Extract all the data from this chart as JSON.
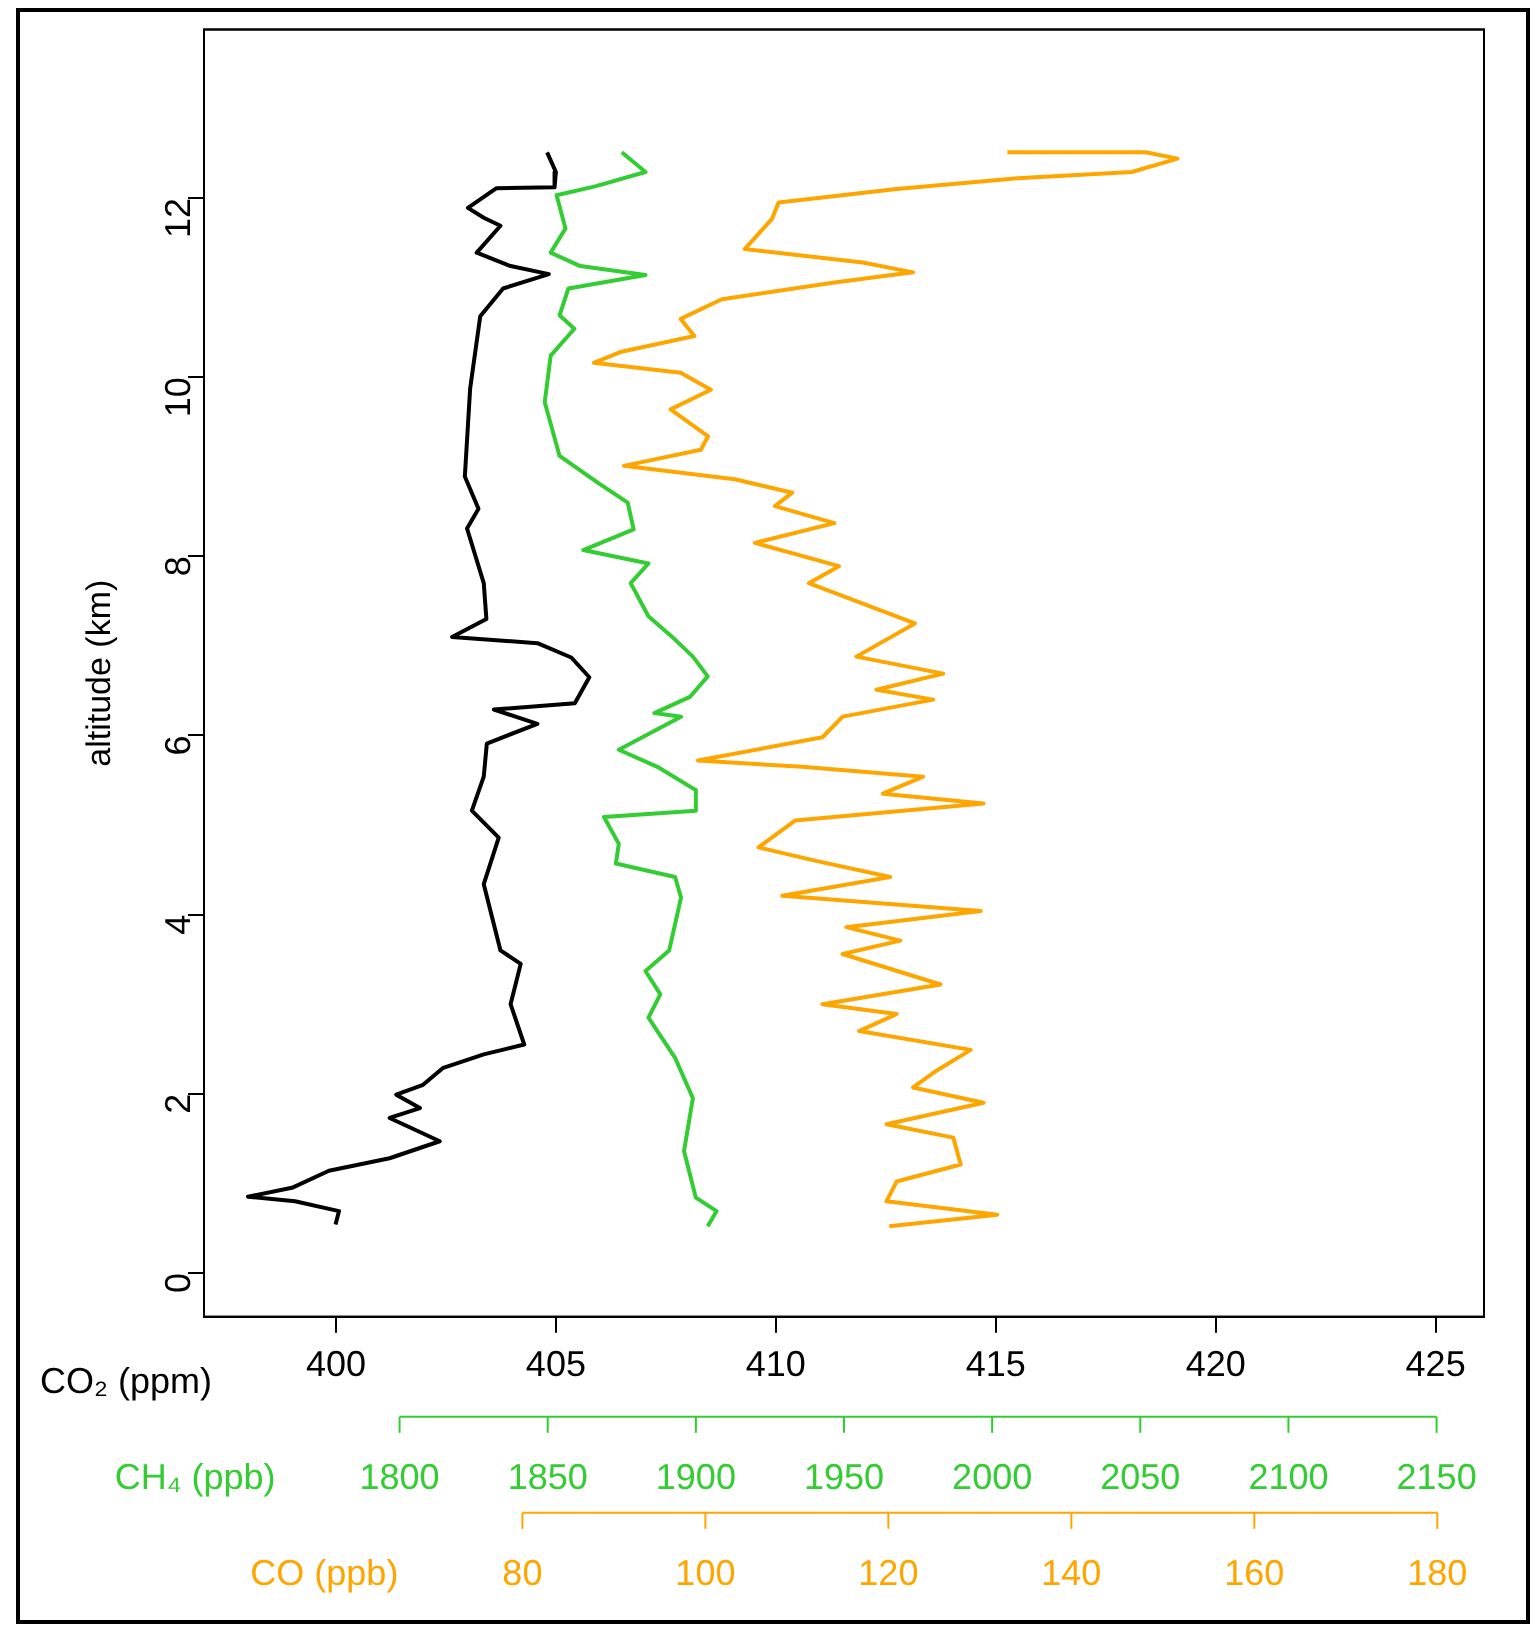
{
  "chart_data": [
    {
      "type": "line",
      "xlabel": "CO₂ (ppm)",
      "ylabel": "altitude (km)",
      "x2label": "CH₄ (ppb)",
      "xlim": [
        397,
        426.1
      ],
      "xticks": [
        400,
        405,
        410,
        415,
        420,
        425
      ],
      "x2lim": [
        1734,
        2166
      ],
      "x2ticks": [
        1800,
        1850,
        1900,
        1950,
        2000,
        2050,
        2100,
        2150
      ],
      "ylim": [
        -0.49,
        13.88
      ],
      "yticks": [
        0,
        2,
        4,
        6,
        8,
        10,
        12
      ],
      "series": [
        {
          "color": "#000000",
          "x": [
            404.8,
            405.0,
            404.97,
            403.65,
            403.0,
            403.36,
            403.74,
            403.2,
            403.97,
            404.84,
            403.8,
            403.28,
            403.05,
            402.93,
            403.24,
            402.98,
            403.36,
            403.42,
            402.64,
            404.58,
            405.35,
            405.76,
            405.43,
            403.59,
            404.58,
            403.43,
            403.36,
            403.09,
            403.7,
            403.36,
            403.74,
            404.2,
            403.97,
            404.28,
            403.36,
            402.44,
            401.98,
            401.37,
            401.91,
            401.22,
            402.36,
            401.22,
            399.84,
            399.0,
            398.0,
            399.07,
            400.07,
            399.99
          ],
          "values": [
            12.51,
            12.29,
            12.12,
            12.11,
            11.89,
            11.78,
            11.69,
            11.39,
            11.24,
            11.15,
            10.99,
            10.68,
            9.87,
            8.89,
            8.53,
            8.31,
            7.7,
            7.3,
            7.1,
            7.03,
            6.87,
            6.65,
            6.36,
            6.29,
            6.13,
            5.91,
            5.54,
            5.16,
            4.86,
            4.34,
            3.6,
            3.45,
            3.0,
            2.55,
            2.44,
            2.29,
            2.1,
            1.99,
            1.84,
            1.73,
            1.47,
            1.28,
            1.14,
            0.95,
            0.85,
            0.8,
            0.69,
            0.54
          ]
        },
        {
          "color": "#33cc33",
          "axis": "x2",
          "x": [
            1875,
            1883,
            1866,
            1853,
            1856,
            1851,
            1861,
            1883,
            1857,
            1854,
            1859,
            1851,
            1849,
            1854,
            1867,
            1877,
            1879,
            1862,
            1884,
            1878,
            1884,
            1893,
            1899,
            1904,
            1898,
            1886,
            1895,
            1874,
            1887,
            1900,
            1900,
            1869,
            1874,
            1873,
            1893,
            1895,
            1891,
            1883,
            1888,
            1884,
            1893,
            1899,
            1896,
            1900,
            1907,
            1904
          ],
          "values": [
            12.51,
            12.29,
            12.13,
            12.03,
            11.66,
            11.39,
            11.24,
            11.14,
            10.99,
            10.69,
            10.54,
            10.24,
            9.72,
            9.12,
            8.82,
            8.6,
            8.3,
            8.07,
            7.92,
            7.7,
            7.33,
            7.07,
            6.88,
            6.66,
            6.43,
            6.25,
            6.21,
            5.84,
            5.65,
            5.39,
            5.16,
            5.09,
            4.79,
            4.57,
            4.42,
            4.19,
            3.6,
            3.37,
            3.11,
            2.85,
            2.4,
            1.95,
            1.36,
            0.84,
            0.69,
            0.52
          ]
        }
      ]
    },
    {
      "type": "line",
      "xlabel": "CO (ppb)",
      "tick_labels": "x",
      "xlim": [
        45.2,
        185.1
      ],
      "xticks": [
        80,
        100,
        120,
        140,
        160,
        180
      ],
      "ylim": [
        -0.49,
        13.88
      ],
      "series": [
        {
          "color": "#ffa500",
          "x": [
            133.0,
            148.1,
            151.6,
            146.6,
            134.1,
            120.9,
            108.0,
            107.3,
            104.3,
            117.2,
            122.7,
            114.3,
            101.8,
            97.3,
            98.8,
            90.7,
            87.8,
            97.3,
            100.6,
            96.2,
            100.3,
            99.5,
            91.1,
            103.2,
            109.5,
            107.6,
            114.1,
            105.4,
            114.6,
            111.3,
            122.9,
            116.5,
            126.0,
            118.7,
            124.9,
            115.0,
            112.8,
            99.2,
            110.6,
            123.8,
            119.4,
            130.4,
            109.8,
            105.8,
            112.1,
            120.2,
            108.4,
            130.1,
            115.4,
            121.3,
            115.0,
            125.7,
            112.8,
            120.9,
            116.8,
            129.0,
            125.3,
            122.7,
            130.4,
            119.8,
            127.1,
            127.9,
            120.9,
            119.8,
            131.9,
            120.1
          ],
          "values": [
            12.51,
            12.51,
            12.44,
            12.29,
            12.22,
            12.1,
            11.95,
            11.77,
            11.43,
            11.28,
            11.17,
            11.06,
            10.87,
            10.65,
            10.46,
            10.28,
            10.16,
            10.05,
            9.86,
            9.64,
            9.34,
            9.19,
            9.01,
            8.86,
            8.71,
            8.56,
            8.37,
            8.15,
            7.89,
            7.7,
            7.25,
            6.88,
            6.69,
            6.51,
            6.4,
            6.21,
            5.98,
            5.72,
            5.65,
            5.54,
            5.35,
            5.24,
            5.05,
            4.75,
            4.6,
            4.42,
            4.21,
            4.04,
            3.86,
            3.71,
            3.56,
            3.22,
            3.0,
            2.89,
            2.7,
            2.49,
            2.26,
            2.07,
            1.9,
            1.66,
            1.51,
            1.21,
            1.02,
            0.8,
            0.65,
            0.52
          ]
        }
      ]
    }
  ]
}
